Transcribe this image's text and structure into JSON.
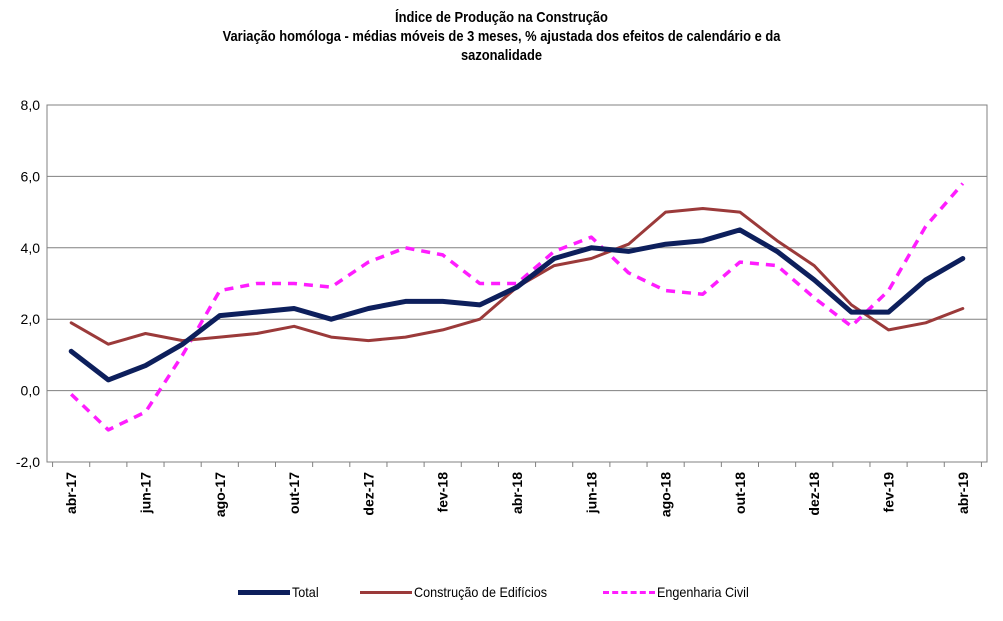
{
  "chart_data": {
    "type": "line",
    "title_lines": [
      "Índice de Produção na Construção",
      "Variação homóloga - médias móveis de 3 meses, % ajustada dos efeitos de calendário e da",
      "sazonalidade"
    ],
    "x": [
      "abr-17",
      "mai-17",
      "jun-17",
      "jul-17",
      "ago-17",
      "set-17",
      "out-17",
      "nov-17",
      "dez-17",
      "jan-18",
      "fev-18",
      "mar-18",
      "abr-18",
      "mai-18",
      "jun-18",
      "jul-18",
      "ago-18",
      "set-18",
      "out-18",
      "nov-18",
      "dez-18",
      "jan-19",
      "fev-19",
      "mar-19",
      "abr-19"
    ],
    "x_tick_labels": [
      "abr-17",
      "jun-17",
      "ago-17",
      "out-17",
      "dez-17",
      "fev-18",
      "abr-18",
      "jun-18",
      "ago-18",
      "out-18",
      "dez-18",
      "fev-19",
      "abr-19"
    ],
    "ylim": [
      -2.0,
      8.0
    ],
    "y_ticks": [
      "-2,0",
      "0,0",
      "2,0",
      "4,0",
      "6,0",
      "8,0"
    ],
    "grid": true,
    "legend_position": "bottom",
    "series": [
      {
        "name": "Total",
        "color": "#0d1f5c",
        "style": "solid-thick",
        "values": [
          1.1,
          0.3,
          0.7,
          1.3,
          2.1,
          2.2,
          2.3,
          2.0,
          2.3,
          2.5,
          2.5,
          2.4,
          2.9,
          3.7,
          4.0,
          3.9,
          4.1,
          4.2,
          4.5,
          3.9,
          3.1,
          2.2,
          2.2,
          3.1,
          3.7
        ]
      },
      {
        "name": "Construção de Edifícios",
        "color": "#9b3a3a",
        "style": "solid",
        "values": [
          1.9,
          1.3,
          1.6,
          1.4,
          1.5,
          1.6,
          1.8,
          1.5,
          1.4,
          1.5,
          1.7,
          2.0,
          2.9,
          3.5,
          3.7,
          4.1,
          5.0,
          5.1,
          5.0,
          4.2,
          3.5,
          2.4,
          1.7,
          1.9,
          2.3
        ]
      },
      {
        "name": "Engenharia Civil",
        "color": "#ff1dff",
        "style": "dashed",
        "values": [
          -0.1,
          -1.1,
          -0.6,
          1.0,
          2.8,
          3.0,
          3.0,
          2.9,
          3.6,
          4.0,
          3.8,
          3.0,
          3.0,
          3.9,
          4.3,
          3.3,
          2.8,
          2.7,
          3.6,
          3.5,
          2.6,
          1.8,
          2.8,
          4.6,
          5.8
        ]
      }
    ]
  }
}
